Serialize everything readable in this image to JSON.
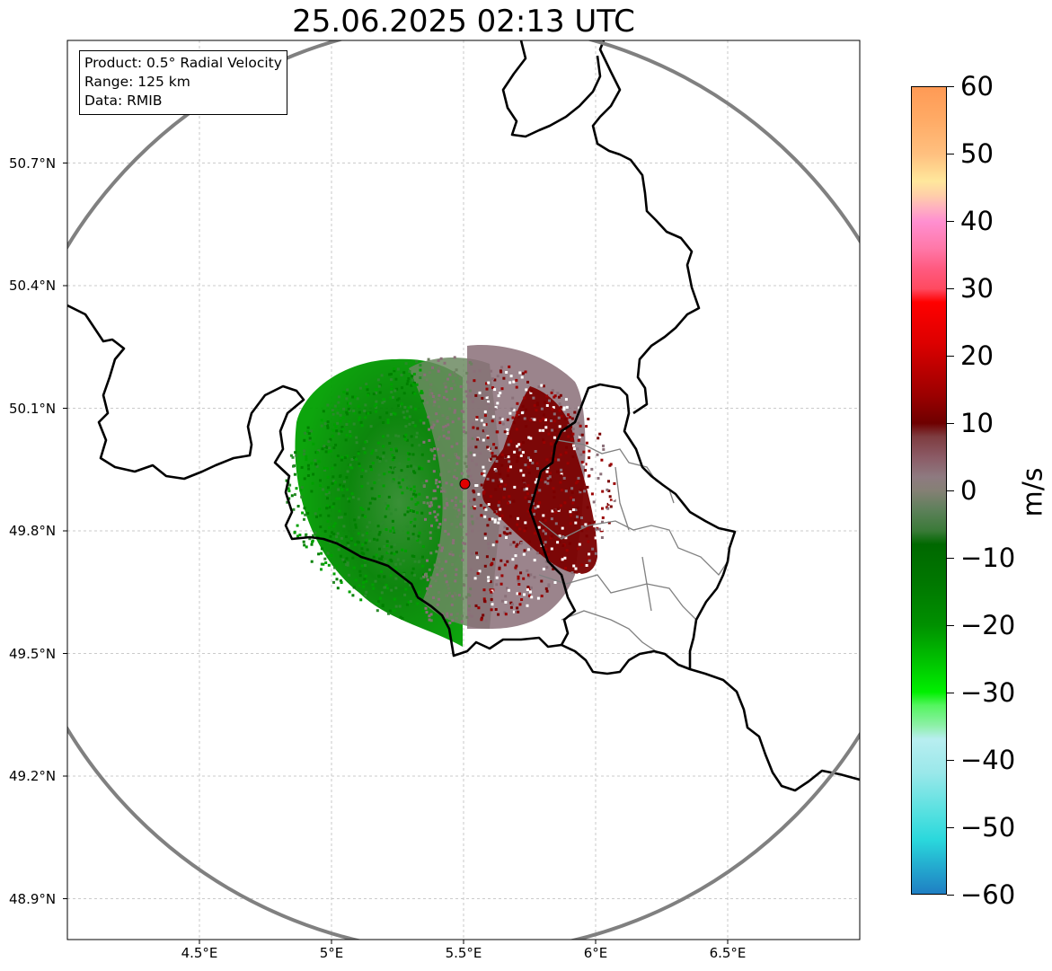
{
  "title": "25.06.2025 02:13 UTC",
  "info": {
    "product": "Product: 0.5° Radial Velocity",
    "range": "Range: 125 km",
    "source": "Data: RMIB"
  },
  "map": {
    "lon_range": [
      4.0,
      7.0
    ],
    "lat_range": [
      48.8,
      51.0
    ],
    "lat_ticks": [
      {
        "value": 50.7,
        "label": "50.7°N"
      },
      {
        "value": 50.4,
        "label": "50.4°N"
      },
      {
        "value": 50.1,
        "label": "50.1°N"
      },
      {
        "value": 49.8,
        "label": "49.8°N"
      },
      {
        "value": 49.5,
        "label": "49.5°N"
      },
      {
        "value": 49.2,
        "label": "49.2°N"
      },
      {
        "value": 48.9,
        "label": "48.9°N"
      }
    ],
    "lon_ticks": [
      {
        "value": 4.5,
        "label": "4.5°E"
      },
      {
        "value": 5.0,
        "label": "5°E"
      },
      {
        "value": 5.5,
        "label": "5.5°E"
      },
      {
        "value": 6.0,
        "label": "6°E"
      },
      {
        "value": 6.5,
        "label": "6.5°E"
      }
    ],
    "radar_site": {
      "lon": 5.505,
      "lat": 49.915
    },
    "gridlines": true
  },
  "colorbar": {
    "unit": "m/s",
    "min": -60,
    "max": 60,
    "ticks": [
      {
        "value": 60,
        "label": "60"
      },
      {
        "value": 50,
        "label": "50"
      },
      {
        "value": 40,
        "label": "40"
      },
      {
        "value": 30,
        "label": "30"
      },
      {
        "value": 20,
        "label": "20"
      },
      {
        "value": 10,
        "label": "10"
      },
      {
        "value": 0,
        "label": "0"
      },
      {
        "value": -10,
        "label": "−10"
      },
      {
        "value": -20,
        "label": "−20"
      },
      {
        "value": -30,
        "label": "−30"
      },
      {
        "value": -40,
        "label": "−40"
      },
      {
        "value": -50,
        "label": "−50"
      },
      {
        "value": -60,
        "label": "−60"
      }
    ],
    "stops": [
      {
        "v": 60,
        "c": "#ff9a55"
      },
      {
        "v": 55,
        "c": "#ffab66"
      },
      {
        "v": 50,
        "c": "#ffc07f"
      },
      {
        "v": 46,
        "c": "#ffe79c"
      },
      {
        "v": 44,
        "c": "#ffd0a8"
      },
      {
        "v": 42,
        "c": "#ffb0c0"
      },
      {
        "v": 40,
        "c": "#ff8fd0"
      },
      {
        "v": 36,
        "c": "#ff78a8"
      },
      {
        "v": 33,
        "c": "#ff5a80"
      },
      {
        "v": 30,
        "c": "#ff4a60"
      },
      {
        "v": 28,
        "c": "#ff0000"
      },
      {
        "v": 22,
        "c": "#dd0000"
      },
      {
        "v": 18,
        "c": "#bb0000"
      },
      {
        "v": 14,
        "c": "#9a0000"
      },
      {
        "v": 10,
        "c": "#6e0000"
      },
      {
        "v": 8,
        "c": "#7e3c40"
      },
      {
        "v": 5,
        "c": "#8b5a65"
      },
      {
        "v": 2,
        "c": "#8e7a80"
      },
      {
        "v": 0,
        "c": "#858075"
      },
      {
        "v": -3,
        "c": "#5c8059"
      },
      {
        "v": -6,
        "c": "#3a7a38"
      },
      {
        "v": -8,
        "c": "#006800"
      },
      {
        "v": -14,
        "c": "#007800"
      },
      {
        "v": -20,
        "c": "#009000"
      },
      {
        "v": -26,
        "c": "#00c800"
      },
      {
        "v": -30,
        "c": "#00f000"
      },
      {
        "v": -32,
        "c": "#55f560"
      },
      {
        "v": -35,
        "c": "#8ef0a8"
      },
      {
        "v": -37,
        "c": "#b8eef0"
      },
      {
        "v": -42,
        "c": "#9ae8ea"
      },
      {
        "v": -48,
        "c": "#55e0e0"
      },
      {
        "v": -52,
        "c": "#2ad8dc"
      },
      {
        "v": -55,
        "c": "#25b5d2"
      },
      {
        "v": -60,
        "c": "#1f7fc3"
      }
    ]
  }
}
